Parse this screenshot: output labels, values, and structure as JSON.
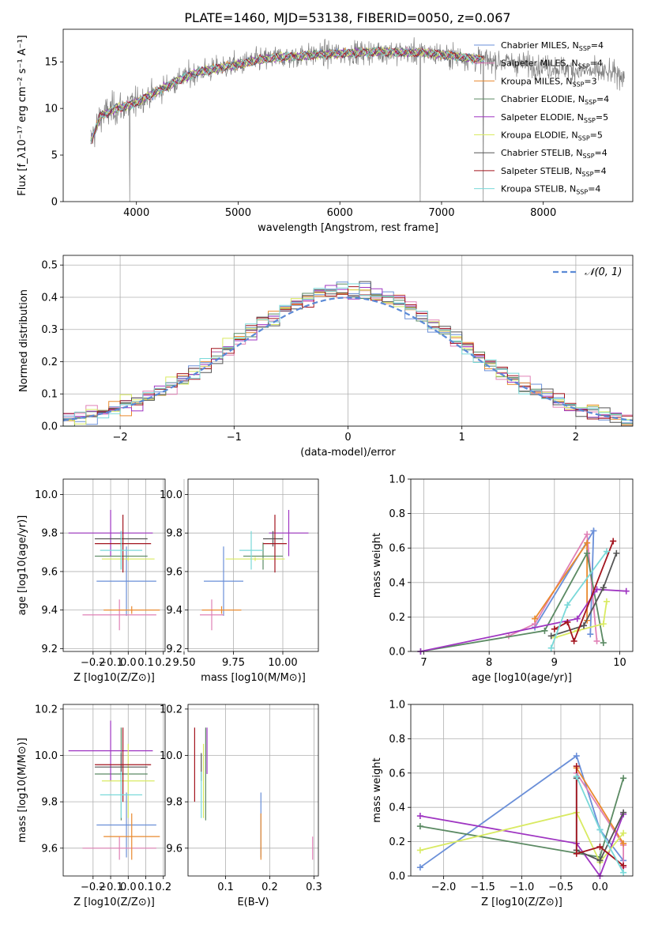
{
  "title": "PLATE=1460, MJD=53138, FIBERID=0050, z=0.067",
  "colors": {
    "ChabrierMILES": "#6a8fd8",
    "SalpeterMILES": "#e081b6",
    "KroupaMILES": "#e98a2e",
    "ChabrierELODIE": "#5b8a63",
    "SalpeterELODIE": "#9f35c2",
    "KroupaELODIE": "#d9ea62",
    "ChabrierSTELIB": "#555555",
    "SalpeterSTELIB": "#a3151f",
    "KroupaSTELIB": "#7ad9d9",
    "data": "#808080",
    "grid": "#b0b0b0"
  },
  "chart_data": [
    {
      "id": "spectrum",
      "type": "line",
      "xlabel": "wavelength [Angstrom, rest frame]",
      "ylabel": "Flux [f_λ10⁻¹⁷ erg cm⁻² s⁻¹ A⁻¹]",
      "xlim": [
        3280,
        8880
      ],
      "ylim": [
        0,
        18.5
      ],
      "xticks": [
        4000,
        5000,
        6000,
        7000,
        8000
      ],
      "yticks": [
        0,
        5,
        10,
        15
      ],
      "grid": false,
      "legend_position": "top-right",
      "series": [
        {
          "name": "Chabrier MILES, N_SSP=4",
          "leg": [
            "Chabrier MILES, N",
            "SSP",
            "=4"
          ]
        },
        {
          "name": "Salpeter MILES, N_SSP=4",
          "leg": [
            "Salpeter MILES, N",
            "SSP",
            "=4"
          ]
        },
        {
          "name": "Kroupa MILES, N_SSP=3",
          "leg": [
            "Kroupa MILES, N",
            "SSP",
            "=3"
          ]
        },
        {
          "name": "Chabrier ELODIE, N_SSP=4",
          "leg": [
            "Chabrier ELODIE, N",
            "SSP",
            "=4"
          ]
        },
        {
          "name": "Salpeter ELODIE, N_SSP=5",
          "leg": [
            "Salpeter ELODIE, N",
            "SSP",
            "=5"
          ]
        },
        {
          "name": "Kroupa ELODIE, N_SSP=5",
          "leg": [
            "Kroupa ELODIE, N",
            "SSP",
            "=5"
          ]
        },
        {
          "name": "Chabrier STELIB, N_SSP=4",
          "leg": [
            "Chabrier STELIB, N",
            "SSP",
            "=4"
          ]
        },
        {
          "name": "Salpeter STELIB, N_SSP=4",
          "leg": [
            "Salpeter STELIB, N",
            "SSP",
            "=4"
          ]
        },
        {
          "name": "Kroupa STELIB, N_SSP=4",
          "leg": [
            "Kroupa STELIB, N",
            "SSP",
            "=4"
          ]
        }
      ],
      "continuum": [
        [
          3550,
          6.5
        ],
        [
          3650,
          9.2
        ],
        [
          3800,
          10.0
        ],
        [
          3950,
          10.4
        ],
        [
          4100,
          11.2
        ],
        [
          4300,
          12.4
        ],
        [
          4450,
          13.2
        ],
        [
          4600,
          13.9
        ],
        [
          4800,
          14.3
        ],
        [
          5000,
          14.7
        ],
        [
          5200,
          15.2
        ],
        [
          5400,
          15.5
        ],
        [
          5600,
          15.6
        ],
        [
          5800,
          15.8
        ],
        [
          6000,
          15.9
        ],
        [
          6200,
          16.0
        ],
        [
          6400,
          16.1
        ],
        [
          6600,
          16.0
        ],
        [
          6800,
          16.0
        ],
        [
          7000,
          15.8
        ],
        [
          7200,
          15.5
        ],
        [
          7400,
          15.2
        ],
        [
          7600,
          15.0
        ],
        [
          7800,
          14.8
        ],
        [
          8000,
          14.5
        ],
        [
          8200,
          14.3
        ],
        [
          8400,
          14.0
        ],
        [
          8600,
          13.8
        ],
        [
          8800,
          13.6
        ]
      ],
      "model_end": [
        3550,
        7420
      ],
      "dips": [
        [
          3933,
          0
        ],
        [
          6790,
          0
        ],
        [
          7410,
          0
        ]
      ]
    },
    {
      "id": "residuals",
      "type": "histogram",
      "xlabel": "(data-model)/error",
      "ylabel": "Normed distribution",
      "xlim": [
        -2.5,
        2.5
      ],
      "ylim": [
        0,
        0.53
      ],
      "xticks": [
        -2,
        -1,
        0,
        1,
        2
      ],
      "yticks": [
        0.0,
        0.1,
        0.2,
        0.3,
        0.4,
        0.5
      ],
      "grid": true,
      "bin_width": 0.1,
      "reference_label": "𝒩(0, 1)",
      "legend_position": "top-right"
    },
    {
      "id": "age_vs_Z",
      "type": "errorbar",
      "xlabel": "Z [log10(Z/Z⊙)]",
      "ylabel": "age [log10(age/yr)]",
      "xlim": [
        -0.37,
        0.21
      ],
      "ylim": [
        9.185,
        10.08
      ],
      "xticks": [
        -0.2,
        -0.1,
        0.0,
        0.1,
        0.2
      ],
      "yticks": [
        9.2,
        9.4,
        9.6,
        9.8,
        10.0
      ],
      "grid": true,
      "points": [
        {
          "c": "ChabrierMILES",
          "x": -0.01,
          "xe": 0.17,
          "y": 9.55,
          "ye": 0.18
        },
        {
          "c": "SalpeterMILES",
          "x": -0.05,
          "xe": 0.21,
          "y": 9.375,
          "ye": 0.08
        },
        {
          "c": "KroupaMILES",
          "x": 0.02,
          "xe": 0.16,
          "y": 9.4,
          "ye": 0.02
        },
        {
          "c": "ChabrierELODIE",
          "x": -0.04,
          "xe": 0.15,
          "y": 9.68,
          "ye": 0.07
        },
        {
          "c": "SalpeterELODIE",
          "x": -0.1,
          "xe": 0.24,
          "y": 9.8,
          "ye": 0.12
        },
        {
          "c": "KroupaELODIE",
          "x": 0.0,
          "xe": 0.15,
          "y": 9.665,
          "ye": 0.01
        },
        {
          "c": "ChabrierSTELIB",
          "x": -0.04,
          "xe": 0.15,
          "y": 9.77,
          "ye": 0.04
        },
        {
          "c": "SalpeterSTELIB",
          "x": -0.03,
          "xe": 0.16,
          "y": 9.745,
          "ye": 0.15
        },
        {
          "c": "KroupaSTELIB",
          "x": -0.04,
          "xe": 0.12,
          "y": 9.71,
          "ye": 0.1
        }
      ]
    },
    {
      "id": "age_vs_mass",
      "type": "errorbar",
      "xlabel": "mass [log10(M/M⊙)]",
      "ylabel": "",
      "xlim": [
        9.52,
        10.18
      ],
      "ylim": [
        9.185,
        10.08
      ],
      "xticks": [
        9.5,
        9.75,
        10.0
      ],
      "yticks": [
        9.2,
        9.4,
        9.6,
        9.8,
        10.0
      ],
      "grid": true,
      "points": [
        {
          "c": "ChabrierMILES",
          "x": 9.7,
          "xe": 0.1,
          "y": 9.55,
          "ye": 0.18
        },
        {
          "c": "SalpeterMILES",
          "x": 9.64,
          "xe": 0.06,
          "y": 9.375,
          "ye": 0.08
        },
        {
          "c": "KroupaMILES",
          "x": 9.69,
          "xe": 0.1,
          "y": 9.4,
          "ye": 0.02
        },
        {
          "c": "ChabrierELODIE",
          "x": 9.9,
          "xe": 0.1,
          "y": 9.68,
          "ye": 0.07
        },
        {
          "c": "SalpeterELODIE",
          "x": 10.03,
          "xe": 0.1,
          "y": 9.8,
          "ye": 0.12
        },
        {
          "c": "KroupaELODIE",
          "x": 9.86,
          "xe": 0.15,
          "y": 9.665,
          "ye": 0.01
        },
        {
          "c": "ChabrierSTELIB",
          "x": 9.95,
          "xe": 0.05,
          "y": 9.77,
          "ye": 0.04
        },
        {
          "c": "SalpeterSTELIB",
          "x": 9.96,
          "xe": 0.06,
          "y": 9.745,
          "ye": 0.15
        },
        {
          "c": "KroupaSTELIB",
          "x": 9.84,
          "xe": 0.06,
          "y": 9.71,
          "ye": 0.1
        }
      ]
    },
    {
      "id": "weight_vs_age",
      "type": "line",
      "xlabel": "age [log10(age/yr)]",
      "ylabel": "mass weight",
      "xlim": [
        6.8,
        10.2
      ],
      "ylim": [
        0,
        1.0
      ],
      "xticks": [
        7,
        8,
        9,
        10
      ],
      "yticks": [
        0.0,
        0.2,
        0.4,
        0.6,
        0.8,
        1.0
      ],
      "grid": true,
      "series": [
        {
          "c": "ChabrierMILES",
          "x": [
            8.7,
            9.6,
            9.55
          ],
          "y": [
            0.14,
            0.7,
            0.1
          ]
        },
        {
          "c": "SalpeterMILES",
          "x": [
            8.3,
            8.7,
            9.5,
            9.65
          ],
          "y": [
            0.09,
            0.16,
            0.68,
            0.06
          ]
        },
        {
          "c": "KroupaMILES",
          "x": [
            8.7,
            9.5,
            9.5
          ],
          "y": [
            0.19,
            0.63,
            0.18
          ]
        },
        {
          "c": "ChabrierELODIE",
          "x": [
            6.95,
            8.85,
            9.5,
            9.75
          ],
          "y": [
            0.0,
            0.12,
            0.57,
            0.05
          ]
        },
        {
          "c": "SalpeterELODIE",
          "x": [
            6.95,
            9.35,
            9.65,
            10.1
          ],
          "y": [
            0.0,
            0.19,
            0.36,
            0.35
          ]
        },
        {
          "c": "KroupaELODIE",
          "x": [
            9.0,
            9.35,
            9.75,
            9.8
          ],
          "y": [
            0.08,
            0.12,
            0.16,
            0.29
          ]
        },
        {
          "c": "ChabrierSTELIB",
          "x": [
            8.95,
            9.45,
            9.75,
            9.95
          ],
          "y": [
            0.09,
            0.15,
            0.37,
            0.57
          ]
        },
        {
          "c": "SalpeterSTELIB",
          "x": [
            9.0,
            9.2,
            9.3,
            9.9
          ],
          "y": [
            0.13,
            0.17,
            0.06,
            0.64
          ]
        },
        {
          "c": "KroupaSTELIB",
          "x": [
            8.95,
            9.2,
            9.8
          ],
          "y": [
            0.02,
            0.27,
            0.58
          ]
        }
      ]
    },
    {
      "id": "mass_vs_Z",
      "type": "errorbar",
      "xlabel": "Z [log10(Z/Z⊙)]",
      "ylabel": "mass [log10(M/M⊙)]",
      "xlim": [
        -0.37,
        0.21
      ],
      "ylim": [
        9.48,
        10.22
      ],
      "xticks": [
        -0.2,
        -0.1,
        0.0,
        0.1,
        0.2
      ],
      "yticks": [
        9.6,
        9.8,
        10.0,
        10.2
      ],
      "grid": true,
      "points": [
        {
          "c": "ChabrierMILES",
          "x": -0.01,
          "xe": 0.17,
          "y": 9.7,
          "ye": 0.14
        },
        {
          "c": "SalpeterMILES",
          "x": -0.05,
          "xe": 0.21,
          "y": 9.6,
          "ye": 0.05
        },
        {
          "c": "KroupaMILES",
          "x": 0.02,
          "xe": 0.16,
          "y": 9.65,
          "ye": 0.1
        },
        {
          "c": "ChabrierELODIE",
          "x": -0.04,
          "xe": 0.15,
          "y": 9.92,
          "ye": 0.2
        },
        {
          "c": "SalpeterELODIE",
          "x": -0.1,
          "xe": 0.24,
          "y": 10.02,
          "ye": 0.13
        },
        {
          "c": "KroupaELODIE",
          "x": 0.0,
          "xe": 0.15,
          "y": 9.89,
          "ye": 0.16
        },
        {
          "c": "ChabrierSTELIB",
          "x": -0.04,
          "xe": 0.15,
          "y": 9.95,
          "ye": 0.06
        },
        {
          "c": "SalpeterSTELIB",
          "x": -0.03,
          "xe": 0.16,
          "y": 9.96,
          "ye": 0.16
        },
        {
          "c": "KroupaSTELIB",
          "x": -0.04,
          "xe": 0.12,
          "y": 9.83,
          "ye": 0.1
        }
      ]
    },
    {
      "id": "mass_vs_ebv",
      "type": "errorbar",
      "xlabel": "E(B-V)",
      "ylabel": "",
      "xlim": [
        0.015,
        0.31
      ],
      "ylim": [
        9.48,
        10.22
      ],
      "xticks": [
        0.1,
        0.2,
        0.3
      ],
      "yticks": [
        9.6,
        9.8,
        10.0,
        10.2
      ],
      "grid": true,
      "points": [
        {
          "c": "ChabrierMILES",
          "x": 0.18,
          "y": 9.7,
          "ye": 0.14
        },
        {
          "c": "SalpeterMILES",
          "x": 0.297,
          "y": 9.6,
          "ye": 0.05
        },
        {
          "c": "KroupaMILES",
          "x": 0.18,
          "y": 9.65,
          "ye": 0.1
        },
        {
          "c": "ChabrierELODIE",
          "x": 0.055,
          "y": 9.92,
          "ye": 0.2
        },
        {
          "c": "SalpeterELODIE",
          "x": 0.058,
          "y": 10.02,
          "ye": 0.1
        },
        {
          "c": "KroupaELODIE",
          "x": 0.05,
          "y": 9.89,
          "ye": 0.16
        },
        {
          "c": "ChabrierSTELIB",
          "x": 0.045,
          "y": 9.95,
          "ye": 0.06
        },
        {
          "c": "SalpeterSTELIB",
          "x": 0.03,
          "y": 9.96,
          "ye": 0.16
        },
        {
          "c": "KroupaSTELIB",
          "x": 0.045,
          "y": 9.83,
          "ye": 0.1
        }
      ]
    },
    {
      "id": "weight_vs_Z",
      "type": "line",
      "xlabel": "Z [log10(Z/Z⊙)]",
      "ylabel": "mass weight",
      "xlim": [
        -2.42,
        0.42
      ],
      "ylim": [
        0,
        1.0
      ],
      "xticks": [
        -2.0,
        -1.5,
        -1.0,
        -0.5,
        0.0
      ],
      "yticks": [
        0.0,
        0.2,
        0.4,
        0.6,
        0.8,
        1.0
      ],
      "grid": true,
      "series": [
        {
          "c": "ChabrierMILES",
          "x": [
            -2.3,
            -0.3,
            0.0,
            0.3
          ],
          "y": [
            0.05,
            0.7,
            0.27,
            0.09
          ]
        },
        {
          "c": "SalpeterMILES",
          "x": [
            -0.3,
            0.3,
            0.3
          ],
          "y": [
            0.6,
            0.18,
            0.05
          ]
        },
        {
          "c": "KroupaMILES",
          "x": [
            -0.3,
            0.3
          ],
          "y": [
            0.63,
            0.19
          ]
        },
        {
          "c": "ChabrierELODIE",
          "x": [
            -2.3,
            0.0,
            0.3
          ],
          "y": [
            0.29,
            0.11,
            0.57
          ]
        },
        {
          "c": "SalpeterELODIE",
          "x": [
            -2.3,
            -0.3,
            0.0,
            0.3
          ],
          "y": [
            0.35,
            0.19,
            0.0,
            0.36
          ]
        },
        {
          "c": "KroupaELODIE",
          "x": [
            -2.3,
            -0.3,
            0.0,
            0.3
          ],
          "y": [
            0.15,
            0.37,
            0.08,
            0.25
          ]
        },
        {
          "c": "ChabrierSTELIB",
          "x": [
            -0.3,
            -0.3,
            0.0,
            0.3
          ],
          "y": [
            0.57,
            0.15,
            0.09,
            0.37
          ]
        },
        {
          "c": "SalpeterSTELIB",
          "x": [
            -0.3,
            -0.3,
            0.0,
            0.3
          ],
          "y": [
            0.64,
            0.13,
            0.17,
            0.06
          ]
        },
        {
          "c": "KroupaSTELIB",
          "x": [
            -0.3,
            0.0,
            0.3
          ],
          "y": [
            0.58,
            0.27,
            0.02
          ]
        }
      ]
    }
  ]
}
